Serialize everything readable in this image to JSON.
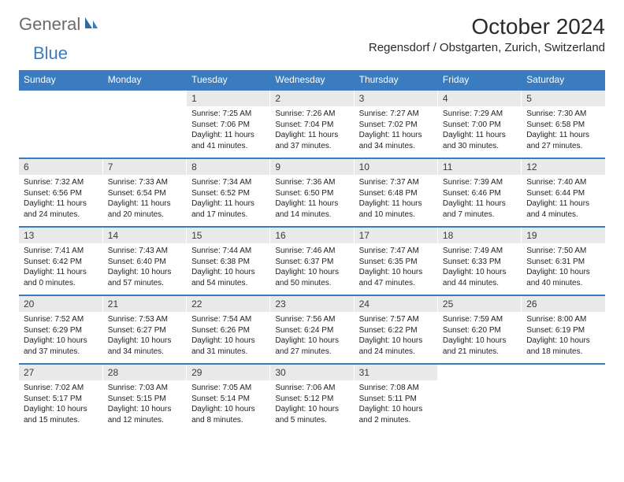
{
  "logo": {
    "general": "General",
    "blue": "Blue"
  },
  "title": "October 2024",
  "location": "Regensdorf / Obstgarten, Zurich, Switzerland",
  "colors": {
    "header_bg": "#3b7bbf",
    "header_text": "#ffffff",
    "daynum_bg": "#e9e9e9",
    "week_border": "#3b7bbf",
    "text": "#222222",
    "logo_gray": "#6b6b6b",
    "logo_blue": "#3b7bbf",
    "page_bg": "#ffffff"
  },
  "typography": {
    "title_fontsize": 28,
    "location_fontsize": 15,
    "dayhead_fontsize": 12,
    "daynum_fontsize": 12,
    "detail_fontsize": 10
  },
  "day_headers": [
    "Sunday",
    "Monday",
    "Tuesday",
    "Wednesday",
    "Thursday",
    "Friday",
    "Saturday"
  ],
  "weeks": [
    [
      null,
      null,
      {
        "n": "1",
        "sr": "7:25 AM",
        "ss": "7:06 PM",
        "dl": "11 hours and 41 minutes."
      },
      {
        "n": "2",
        "sr": "7:26 AM",
        "ss": "7:04 PM",
        "dl": "11 hours and 37 minutes."
      },
      {
        "n": "3",
        "sr": "7:27 AM",
        "ss": "7:02 PM",
        "dl": "11 hours and 34 minutes."
      },
      {
        "n": "4",
        "sr": "7:29 AM",
        "ss": "7:00 PM",
        "dl": "11 hours and 30 minutes."
      },
      {
        "n": "5",
        "sr": "7:30 AM",
        "ss": "6:58 PM",
        "dl": "11 hours and 27 minutes."
      }
    ],
    [
      {
        "n": "6",
        "sr": "7:32 AM",
        "ss": "6:56 PM",
        "dl": "11 hours and 24 minutes."
      },
      {
        "n": "7",
        "sr": "7:33 AM",
        "ss": "6:54 PM",
        "dl": "11 hours and 20 minutes."
      },
      {
        "n": "8",
        "sr": "7:34 AM",
        "ss": "6:52 PM",
        "dl": "11 hours and 17 minutes."
      },
      {
        "n": "9",
        "sr": "7:36 AM",
        "ss": "6:50 PM",
        "dl": "11 hours and 14 minutes."
      },
      {
        "n": "10",
        "sr": "7:37 AM",
        "ss": "6:48 PM",
        "dl": "11 hours and 10 minutes."
      },
      {
        "n": "11",
        "sr": "7:39 AM",
        "ss": "6:46 PM",
        "dl": "11 hours and 7 minutes."
      },
      {
        "n": "12",
        "sr": "7:40 AM",
        "ss": "6:44 PM",
        "dl": "11 hours and 4 minutes."
      }
    ],
    [
      {
        "n": "13",
        "sr": "7:41 AM",
        "ss": "6:42 PM",
        "dl": "11 hours and 0 minutes."
      },
      {
        "n": "14",
        "sr": "7:43 AM",
        "ss": "6:40 PM",
        "dl": "10 hours and 57 minutes."
      },
      {
        "n": "15",
        "sr": "7:44 AM",
        "ss": "6:38 PM",
        "dl": "10 hours and 54 minutes."
      },
      {
        "n": "16",
        "sr": "7:46 AM",
        "ss": "6:37 PM",
        "dl": "10 hours and 50 minutes."
      },
      {
        "n": "17",
        "sr": "7:47 AM",
        "ss": "6:35 PM",
        "dl": "10 hours and 47 minutes."
      },
      {
        "n": "18",
        "sr": "7:49 AM",
        "ss": "6:33 PM",
        "dl": "10 hours and 44 minutes."
      },
      {
        "n": "19",
        "sr": "7:50 AM",
        "ss": "6:31 PM",
        "dl": "10 hours and 40 minutes."
      }
    ],
    [
      {
        "n": "20",
        "sr": "7:52 AM",
        "ss": "6:29 PM",
        "dl": "10 hours and 37 minutes."
      },
      {
        "n": "21",
        "sr": "7:53 AM",
        "ss": "6:27 PM",
        "dl": "10 hours and 34 minutes."
      },
      {
        "n": "22",
        "sr": "7:54 AM",
        "ss": "6:26 PM",
        "dl": "10 hours and 31 minutes."
      },
      {
        "n": "23",
        "sr": "7:56 AM",
        "ss": "6:24 PM",
        "dl": "10 hours and 27 minutes."
      },
      {
        "n": "24",
        "sr": "7:57 AM",
        "ss": "6:22 PM",
        "dl": "10 hours and 24 minutes."
      },
      {
        "n": "25",
        "sr": "7:59 AM",
        "ss": "6:20 PM",
        "dl": "10 hours and 21 minutes."
      },
      {
        "n": "26",
        "sr": "8:00 AM",
        "ss": "6:19 PM",
        "dl": "10 hours and 18 minutes."
      }
    ],
    [
      {
        "n": "27",
        "sr": "7:02 AM",
        "ss": "5:17 PM",
        "dl": "10 hours and 15 minutes."
      },
      {
        "n": "28",
        "sr": "7:03 AM",
        "ss": "5:15 PM",
        "dl": "10 hours and 12 minutes."
      },
      {
        "n": "29",
        "sr": "7:05 AM",
        "ss": "5:14 PM",
        "dl": "10 hours and 8 minutes."
      },
      {
        "n": "30",
        "sr": "7:06 AM",
        "ss": "5:12 PM",
        "dl": "10 hours and 5 minutes."
      },
      {
        "n": "31",
        "sr": "7:08 AM",
        "ss": "5:11 PM",
        "dl": "10 hours and 2 minutes."
      },
      null,
      null
    ]
  ],
  "labels": {
    "sunrise": "Sunrise: ",
    "sunset": "Sunset: ",
    "daylight": "Daylight: "
  }
}
